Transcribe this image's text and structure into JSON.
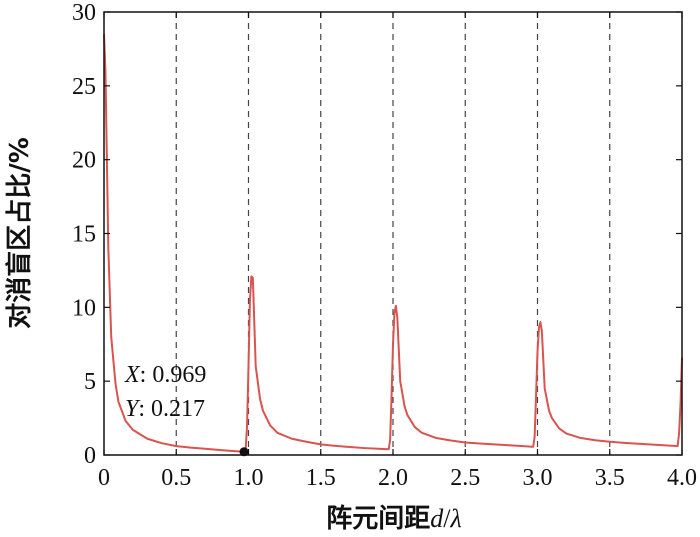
{
  "chart_data": {
    "type": "line",
    "xlabel_text": "阵元间距",
    "xlabel_var": "d",
    "xlabel_sep": "/",
    "xlabel_lambda": "λ",
    "ylabel": "对消盲区占比/%",
    "xlim": [
      0,
      4.0
    ],
    "ylim": [
      0,
      30
    ],
    "xticks": [
      "0",
      "0.5",
      "1.0",
      "1.5",
      "2.0",
      "2.5",
      "3.0",
      "3.5",
      "4.0"
    ],
    "yticks": [
      "0",
      "5",
      "10",
      "15",
      "20",
      "25",
      "30"
    ],
    "grid": "vertical dashed lines at 0.5, 1.0, 1.5, 2.0, 2.5, 3.0, 3.5",
    "line_color": "#d9534f",
    "series": [
      {
        "x": [
          0.0,
          0.01,
          0.02,
          0.03,
          0.05,
          0.08,
          0.1,
          0.15,
          0.2,
          0.3,
          0.4,
          0.5,
          0.6,
          0.7,
          0.8,
          0.9,
          0.969,
          0.98,
          0.99,
          1.0,
          1.01,
          1.02,
          1.03,
          1.05,
          1.08,
          1.1,
          1.15,
          1.2,
          1.3,
          1.4,
          1.5,
          1.6,
          1.7,
          1.8,
          1.9,
          1.95,
          1.97,
          1.98,
          1.99,
          2.0,
          2.01,
          2.02,
          2.03,
          2.05,
          2.08,
          2.1,
          2.15,
          2.2,
          2.3,
          2.4,
          2.5,
          2.6,
          2.7,
          2.8,
          2.9,
          2.95,
          2.97,
          2.98,
          2.99,
          3.0,
          3.01,
          3.02,
          3.03,
          3.05,
          3.08,
          3.1,
          3.15,
          3.2,
          3.3,
          3.4,
          3.5,
          3.6,
          3.7,
          3.8,
          3.9,
          3.95,
          3.97,
          3.98,
          3.99,
          4.0
        ],
        "y": [
          28.5,
          26.0,
          20.0,
          14.0,
          8.0,
          4.8,
          3.6,
          2.3,
          1.7,
          1.1,
          0.8,
          0.6,
          0.5,
          0.42,
          0.34,
          0.26,
          0.217,
          0.3,
          2.0,
          6.0,
          10.5,
          12.1,
          12.0,
          6.0,
          3.8,
          3.0,
          2.0,
          1.5,
          1.1,
          0.9,
          0.72,
          0.62,
          0.54,
          0.47,
          0.42,
          0.4,
          0.39,
          1.0,
          4.0,
          7.5,
          9.6,
          10.1,
          9.3,
          5.0,
          3.3,
          2.7,
          1.9,
          1.5,
          1.15,
          0.98,
          0.85,
          0.78,
          0.72,
          0.66,
          0.6,
          0.57,
          0.56,
          1.2,
          4.0,
          7.0,
          8.6,
          9.0,
          8.4,
          4.5,
          3.0,
          2.5,
          1.8,
          1.45,
          1.15,
          1.0,
          0.9,
          0.82,
          0.76,
          0.7,
          0.64,
          0.62,
          0.61,
          1.5,
          3.5,
          6.6
        ]
      }
    ],
    "datatip": {
      "x": 0.969,
      "y": 0.217,
      "x_label": "X",
      "x_value": "0.969",
      "y_label": "Y",
      "y_value": "0.217"
    }
  }
}
